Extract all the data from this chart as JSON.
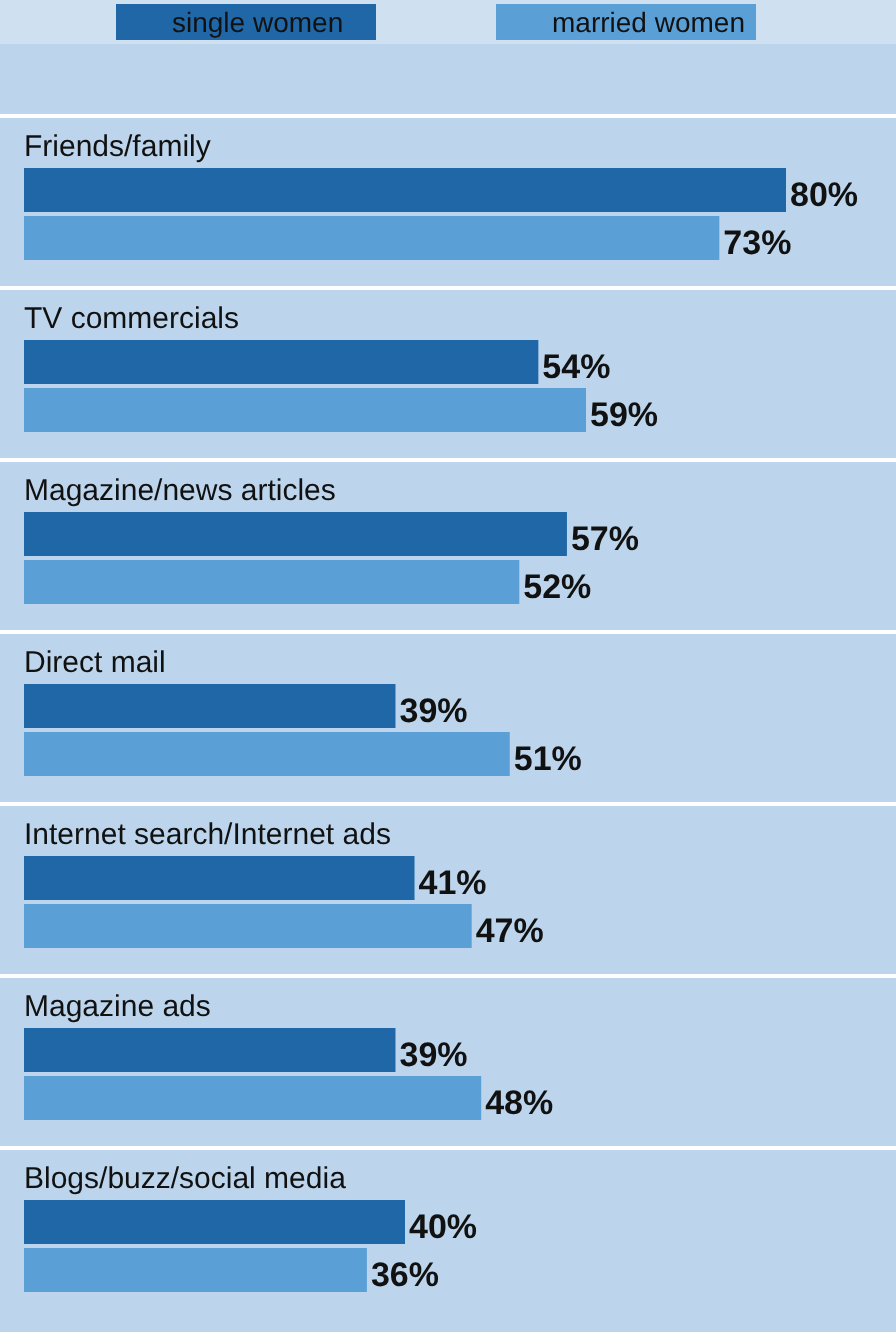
{
  "chart_data": {
    "type": "bar",
    "orientation": "horizontal",
    "categories": [
      "Friends/family",
      "TV commercials",
      "Magazine/news articles",
      "Direct mail",
      "Internet search/Internet ads",
      "Magazine ads",
      "Blogs/buzz/social media"
    ],
    "series": [
      {
        "name": "single women",
        "color": "#1f67a6",
        "values": [
          80,
          54,
          57,
          39,
          41,
          39,
          40
        ],
        "value_labels": [
          "80%",
          "54%",
          "57%",
          "39%",
          "41%",
          "39%",
          "40%"
        ]
      },
      {
        "name": "married women",
        "color": "#5a9fd6",
        "values": [
          73,
          59,
          52,
          51,
          47,
          48,
          36
        ],
        "value_labels": [
          "73%",
          "59%",
          "52%",
          "51%",
          "47%",
          "48%",
          "36%"
        ]
      }
    ],
    "legend": "top"
  }
}
